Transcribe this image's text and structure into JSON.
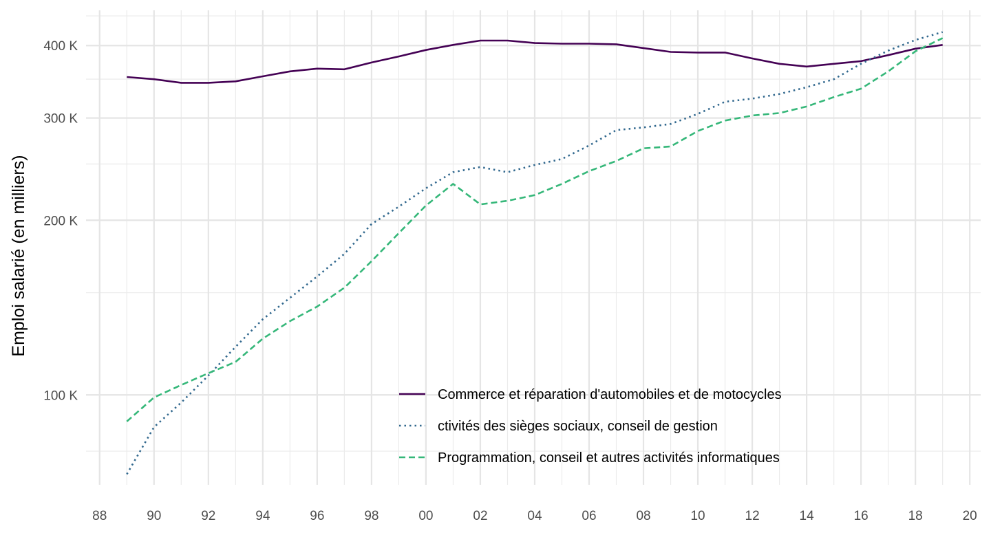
{
  "chart_data": {
    "type": "line",
    "ylabel": "Emploi salarié (en milliers)",
    "xlabel": "",
    "y_scale": "log",
    "x_range": [
      1987.5,
      2020.4
    ],
    "y_range": [
      70,
      460
    ],
    "x_ticks": [
      {
        "value": 1988,
        "label": "88"
      },
      {
        "value": 1990,
        "label": "90"
      },
      {
        "value": 1992,
        "label": "92"
      },
      {
        "value": 1994,
        "label": "94"
      },
      {
        "value": 1996,
        "label": "96"
      },
      {
        "value": 1998,
        "label": "98"
      },
      {
        "value": 2000,
        "label": "00"
      },
      {
        "value": 2002,
        "label": "02"
      },
      {
        "value": 2004,
        "label": "04"
      },
      {
        "value": 2006,
        "label": "06"
      },
      {
        "value": 2008,
        "label": "08"
      },
      {
        "value": 2010,
        "label": "10"
      },
      {
        "value": 2012,
        "label": "12"
      },
      {
        "value": 2014,
        "label": "14"
      },
      {
        "value": 2016,
        "label": "16"
      },
      {
        "value": 2018,
        "label": "18"
      },
      {
        "value": 2020,
        "label": "20"
      }
    ],
    "y_ticks": [
      {
        "value": 100,
        "label": "100 K"
      },
      {
        "value": 200,
        "label": "200 K"
      },
      {
        "value": 300,
        "label": "300 K"
      },
      {
        "value": 400,
        "label": "400 K"
      }
    ],
    "y_minor_ticks": [
      80,
      150,
      250,
      350,
      450
    ],
    "grid": true,
    "legend_position": "bottom-right inside",
    "x": [
      1989,
      1990,
      1991,
      1992,
      1993,
      1994,
      1995,
      1996,
      1997,
      1998,
      1999,
      2000,
      2001,
      2002,
      2003,
      2004,
      2005,
      2006,
      2007,
      2008,
      2009,
      2010,
      2011,
      2012,
      2013,
      2014,
      2015,
      2016,
      2017,
      2018,
      2019
    ],
    "series": [
      {
        "name": "Commerce et réparation d'automobiles et de motocycles",
        "color": "#440154",
        "dash": "solid",
        "values": [
          353,
          350,
          345,
          345,
          347,
          354,
          361,
          365,
          364,
          374,
          383,
          393,
          401,
          408,
          408,
          404,
          403,
          403,
          402,
          396,
          390,
          389,
          389,
          380,
          372,
          368,
          372,
          376,
          385,
          395,
          401
        ]
      },
      {
        "name": "ctivités des sièges sociaux, conseil de gestion",
        "color": "#31688e",
        "dash": "dotted",
        "values": [
          73,
          88,
          97,
          108,
          121,
          135,
          147,
          160,
          175,
          197,
          211,
          227,
          242,
          247,
          242,
          249,
          255,
          269,
          286,
          289,
          293,
          305,
          320,
          324,
          330,
          339,
          350,
          372,
          392,
          409,
          422
        ]
      },
      {
        "name": "Programmation, conseil et autres activités informatiques",
        "color": "#35b779",
        "dash": "dashed",
        "values": [
          90,
          99,
          104,
          109,
          114,
          125,
          134,
          142,
          153,
          170,
          190,
          212,
          231,
          213,
          216,
          221,
          231,
          243,
          253,
          266,
          268,
          285,
          297,
          303,
          306,
          314,
          326,
          337,
          361,
          391,
          412
        ]
      }
    ]
  }
}
